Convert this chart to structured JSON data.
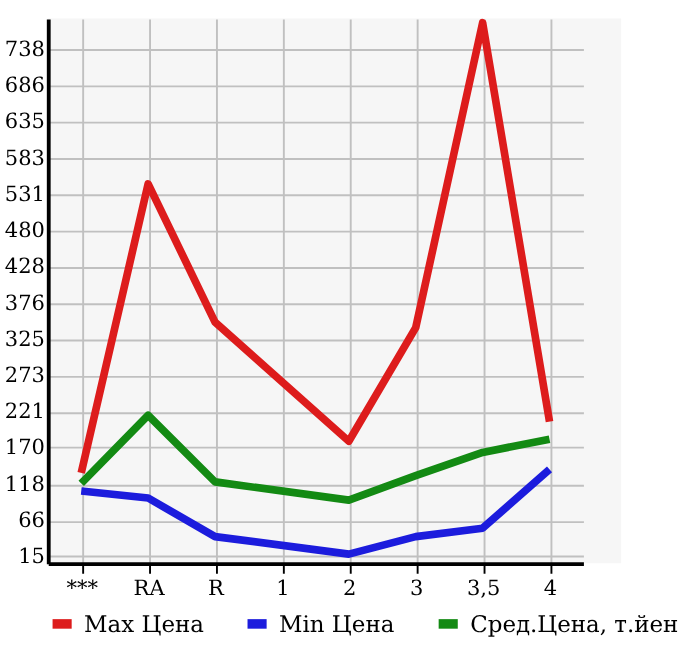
{
  "chart_data": {
    "type": "line",
    "categories": [
      "***",
      "RA",
      "R",
      "1",
      "2",
      "3",
      "3,5",
      "4"
    ],
    "series": [
      {
        "name": "Max Цена",
        "color": "#dd1c1c",
        "values": [
          134,
          546,
          349,
          null,
          179,
          341,
          776,
          207
        ]
      },
      {
        "name": "Min Цена",
        "color": "#1c1cdd",
        "values": [
          108,
          98,
          43,
          null,
          18,
          43,
          55,
          139
        ]
      },
      {
        "name": "Сред.Цена, т.йен",
        "color": "#138a13",
        "values": [
          119,
          216,
          121,
          null,
          95,
          130,
          163,
          182
        ]
      }
    ],
    "ylim": [
      5,
      782
    ],
    "yticks": [
      15,
      66,
      118,
      170,
      221,
      273,
      325,
      376,
      428,
      480,
      531,
      583,
      635,
      686,
      738
    ],
    "grid": true,
    "legend": "bottom",
    "marker": "none",
    "line_style": "solid"
  }
}
